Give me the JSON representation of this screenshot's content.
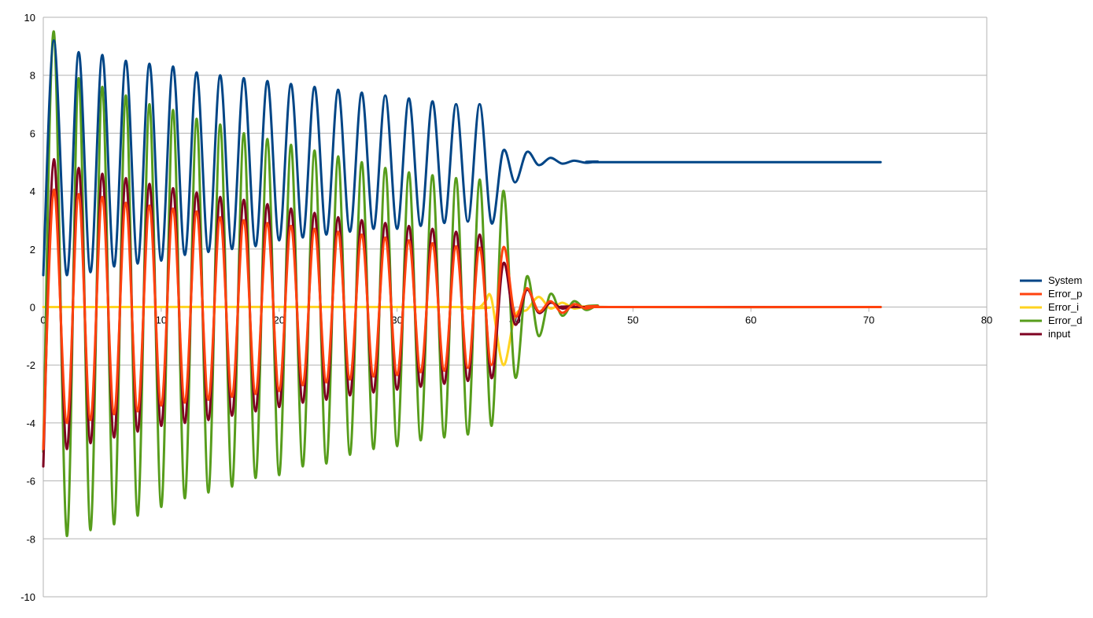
{
  "chart_data": {
    "type": "line",
    "title": "",
    "xlabel": "",
    "ylabel": "",
    "xlim": [
      0,
      80
    ],
    "ylim": [
      -10,
      10
    ],
    "x_ticks": [
      0,
      10,
      20,
      30,
      40,
      50,
      60,
      70,
      80
    ],
    "y_ticks": [
      -10,
      -8,
      -6,
      -4,
      -2,
      0,
      2,
      4,
      6,
      8,
      10
    ],
    "grid": "horizontal",
    "legend_position": "right",
    "series": [
      {
        "name": "System",
        "color": "#004586",
        "points": [
          [
            0,
            1.1
          ],
          [
            0.9,
            9.2
          ],
          [
            2,
            1.1
          ],
          [
            3,
            8.8
          ],
          [
            4,
            1.2
          ],
          [
            5,
            8.7
          ],
          [
            6,
            1.4
          ],
          [
            7,
            8.5
          ],
          [
            8,
            1.5
          ],
          [
            9,
            8.4
          ],
          [
            10,
            1.6
          ],
          [
            11,
            8.3
          ],
          [
            12,
            1.8
          ],
          [
            13,
            8.1
          ],
          [
            14,
            1.9
          ],
          [
            15,
            8.0
          ],
          [
            16,
            2.0
          ],
          [
            17,
            7.9
          ],
          [
            18,
            2.1
          ],
          [
            19,
            7.8
          ],
          [
            20,
            2.3
          ],
          [
            21,
            7.7
          ],
          [
            22,
            2.4
          ],
          [
            23,
            7.6
          ],
          [
            24,
            2.5
          ],
          [
            25,
            7.5
          ],
          [
            26,
            2.6
          ],
          [
            27,
            7.4
          ],
          [
            28,
            2.7
          ],
          [
            29,
            7.3
          ],
          [
            30,
            2.7
          ],
          [
            31,
            7.2
          ],
          [
            32,
            2.8
          ],
          [
            33,
            7.1
          ],
          [
            34,
            2.9
          ],
          [
            35,
            7.0
          ],
          [
            36,
            2.95
          ],
          [
            37,
            7.0
          ],
          [
            38,
            2.9
          ],
          [
            39,
            5.4
          ],
          [
            40,
            4.3
          ],
          [
            41,
            5.35
          ],
          [
            42,
            4.9
          ],
          [
            43,
            5.15
          ],
          [
            44,
            4.95
          ],
          [
            45,
            5.05
          ],
          [
            46,
            4.98
          ],
          [
            47,
            5.02
          ],
          [
            48,
            5.0
          ],
          [
            71,
            5.0
          ]
        ]
      },
      {
        "name": "Error_p",
        "color": "#ff420e",
        "points": [
          [
            0,
            -4.9
          ],
          [
            0.9,
            4.05
          ],
          [
            2,
            -4.0
          ],
          [
            3,
            3.9
          ],
          [
            4,
            -3.9
          ],
          [
            5,
            3.8
          ],
          [
            6,
            -3.7
          ],
          [
            7,
            3.6
          ],
          [
            8,
            -3.6
          ],
          [
            9,
            3.5
          ],
          [
            10,
            -3.4
          ],
          [
            11,
            3.4
          ],
          [
            12,
            -3.3
          ],
          [
            13,
            3.3
          ],
          [
            14,
            -3.2
          ],
          [
            15,
            3.1
          ],
          [
            16,
            -3.1
          ],
          [
            17,
            3.0
          ],
          [
            18,
            -3.0
          ],
          [
            19,
            2.9
          ],
          [
            20,
            -2.9
          ],
          [
            21,
            2.8
          ],
          [
            22,
            -2.7
          ],
          [
            23,
            2.7
          ],
          [
            24,
            -2.6
          ],
          [
            25,
            2.6
          ],
          [
            26,
            -2.5
          ],
          [
            27,
            2.5
          ],
          [
            28,
            -2.4
          ],
          [
            29,
            2.4
          ],
          [
            30,
            -2.35
          ],
          [
            31,
            2.3
          ],
          [
            32,
            -2.25
          ],
          [
            33,
            2.2
          ],
          [
            34,
            -2.2
          ],
          [
            35,
            2.1
          ],
          [
            36,
            -2.1
          ],
          [
            37,
            2.05
          ],
          [
            38,
            -2.0
          ],
          [
            39,
            2.05
          ],
          [
            40,
            -0.3
          ],
          [
            41,
            0.65
          ],
          [
            42,
            -0.15
          ],
          [
            43,
            0.2
          ],
          [
            44,
            -0.2
          ],
          [
            45,
            0.1
          ],
          [
            46,
            -0.05
          ],
          [
            47,
            0.03
          ],
          [
            48,
            0.0
          ],
          [
            71,
            0.0
          ]
        ]
      },
      {
        "name": "Error_i",
        "color": "#ffd320",
        "points": [
          [
            0,
            0
          ],
          [
            35,
            0
          ],
          [
            36,
            -0.05
          ],
          [
            37,
            0
          ],
          [
            37.5,
            0.2
          ],
          [
            38,
            0.3
          ],
          [
            39,
            -2.0
          ],
          [
            40,
            -0.3
          ],
          [
            41,
            -0.1
          ],
          [
            42,
            0.35
          ],
          [
            43,
            -0.05
          ],
          [
            44,
            0.15
          ],
          [
            45,
            -0.05
          ],
          [
            46,
            0.02
          ],
          [
            47,
            0.0
          ],
          [
            71,
            0.0
          ]
        ]
      },
      {
        "name": "Error_d",
        "color": "#579d1c",
        "points": [
          [
            0,
            -5.0
          ],
          [
            0.9,
            9.5
          ],
          [
            2,
            -7.9
          ],
          [
            3,
            7.9
          ],
          [
            4,
            -7.7
          ],
          [
            5,
            7.6
          ],
          [
            6,
            -7.5
          ],
          [
            7,
            7.3
          ],
          [
            8,
            -7.2
          ],
          [
            9,
            7.0
          ],
          [
            10,
            -6.9
          ],
          [
            11,
            6.8
          ],
          [
            12,
            -6.6
          ],
          [
            13,
            6.5
          ],
          [
            14,
            -6.4
          ],
          [
            15,
            6.3
          ],
          [
            16,
            -6.2
          ],
          [
            17,
            6.0
          ],
          [
            18,
            -5.9
          ],
          [
            19,
            5.8
          ],
          [
            20,
            -5.8
          ],
          [
            21,
            5.6
          ],
          [
            22,
            -5.5
          ],
          [
            23,
            5.4
          ],
          [
            24,
            -5.4
          ],
          [
            25,
            5.2
          ],
          [
            26,
            -5.1
          ],
          [
            27,
            5.0
          ],
          [
            28,
            -4.9
          ],
          [
            29,
            4.8
          ],
          [
            30,
            -4.8
          ],
          [
            31,
            4.65
          ],
          [
            32,
            -4.6
          ],
          [
            33,
            4.55
          ],
          [
            34,
            -4.5
          ],
          [
            35,
            4.45
          ],
          [
            36,
            -4.4
          ],
          [
            37,
            4.4
          ],
          [
            38,
            -4.1
          ],
          [
            39,
            4.0
          ],
          [
            40,
            -2.4
          ],
          [
            41,
            1.05
          ],
          [
            42,
            -1.0
          ],
          [
            43,
            0.45
          ],
          [
            44,
            -0.3
          ],
          [
            45,
            0.2
          ],
          [
            46,
            -0.1
          ],
          [
            47,
            0.05
          ],
          [
            48,
            0.0
          ],
          [
            71,
            0.0
          ]
        ]
      },
      {
        "name": "input",
        "color": "#7e0021",
        "points": [
          [
            0,
            -5.5
          ],
          [
            0.9,
            5.1
          ],
          [
            2,
            -4.9
          ],
          [
            3,
            4.8
          ],
          [
            4,
            -4.7
          ],
          [
            5,
            4.6
          ],
          [
            6,
            -4.5
          ],
          [
            7,
            4.45
          ],
          [
            8,
            -4.3
          ],
          [
            9,
            4.25
          ],
          [
            10,
            -4.1
          ],
          [
            11,
            4.1
          ],
          [
            12,
            -4.0
          ],
          [
            13,
            3.95
          ],
          [
            14,
            -3.9
          ],
          [
            15,
            3.8
          ],
          [
            16,
            -3.75
          ],
          [
            17,
            3.7
          ],
          [
            18,
            -3.6
          ],
          [
            19,
            3.55
          ],
          [
            20,
            -3.45
          ],
          [
            21,
            3.4
          ],
          [
            22,
            -3.3
          ],
          [
            23,
            3.25
          ],
          [
            24,
            -3.2
          ],
          [
            25,
            3.1
          ],
          [
            26,
            -3.05
          ],
          [
            27,
            3.0
          ],
          [
            28,
            -2.95
          ],
          [
            29,
            2.9
          ],
          [
            30,
            -2.85
          ],
          [
            31,
            2.8
          ],
          [
            32,
            -2.75
          ],
          [
            33,
            2.7
          ],
          [
            34,
            -2.65
          ],
          [
            35,
            2.6
          ],
          [
            36,
            -2.55
          ],
          [
            37,
            2.5
          ],
          [
            38,
            -2.45
          ],
          [
            39,
            1.5
          ],
          [
            40,
            -0.6
          ],
          [
            41,
            0.6
          ],
          [
            42,
            -0.2
          ],
          [
            43,
            0.15
          ],
          [
            44,
            -0.05
          ],
          [
            45,
            0.02
          ],
          [
            46,
            0.0
          ],
          [
            71,
            0.0
          ]
        ]
      }
    ]
  }
}
